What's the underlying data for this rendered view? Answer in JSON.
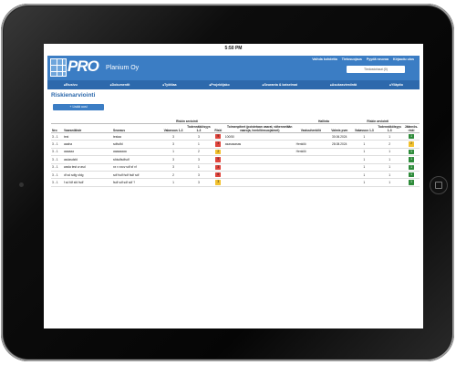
{
  "status_bar": {
    "time": "5:50 PM"
  },
  "header": {
    "logo": "PRO",
    "company": "Planium Oy",
    "links": [
      "Vaihda kohdetta",
      "Tietosuojaus",
      "Pyydä neuvoa",
      "Kirjaudu ulos"
    ],
    "search": "Tiedostohaut (0)"
  },
  "nav": [
    "Etusivu",
    "Dokumentit",
    "Työtilaa",
    "Projektijako",
    "Seuranta & katselmat",
    "Asukasviestintä",
    "Ylläpito"
  ],
  "page": {
    "title": "Riskienarviointi",
    "add_button": "+ Lisää uusi"
  },
  "table": {
    "group_headers": {
      "risk": "Riskin arviointi",
      "handling": "Hallinta",
      "residual": "Riskin arviointi"
    },
    "headers": [
      "Nro",
      "Vaaranlähde",
      "Seuraus",
      "Vakavuus 1-3",
      "Todennäköisyys 1-3",
      "Riski",
      "Toimenpiteet (poistetaan vaarat, vähennetään vaaroja, henkilönsuojaimet)",
      "Vastuuhenkilö",
      "Valmis pvm",
      "Vakavuus 1-3",
      "Todennäköisyys 1-3",
      "Jäännös-riski"
    ],
    "rows": [
      {
        "cells": [
          "3 - 1",
          "test",
          "testaa",
          "3",
          "3",
          "9",
          "100/50",
          "",
          "30.06.2024",
          "1",
          "1",
          "1"
        ],
        "risk_color": "#e0443c",
        "residual_color": "#2e8b3a"
      },
      {
        "cells": [
          "3 - 1",
          "aaaha",
          "sdfsdfd",
          "3",
          "1",
          "3",
          "asasasasas",
          "Henkilö",
          "28.08.2024",
          "1",
          "2",
          "2"
        ],
        "risk_color": "#e0443c",
        "residual_color": "#f2c12e"
      },
      {
        "cells": [
          "3 - 1",
          "aaaaaa",
          "aaaaaaaa",
          "1",
          "2",
          "2",
          "",
          "Henkilö",
          "",
          "1",
          "1",
          "1"
        ],
        "risk_color": "#f2c12e",
        "residual_color": "#2e8b3a"
      },
      {
        "cells": [
          "3 - 1",
          "asdasdsfd",
          "sfdsdfsdfsdf",
          "3",
          "3",
          "9",
          "",
          "",
          "",
          "1",
          "1",
          "1"
        ],
        "risk_color": "#e0443c",
        "residual_color": "#2e8b3a"
      },
      {
        "cells": [
          "3 - 1",
          "wada test w asd",
          "xx v xxcv sdf sf xf",
          "3",
          "1",
          "3",
          "",
          "",
          "",
          "1",
          "1",
          "1"
        ],
        "risk_color": "#e0443c",
        "residual_color": "#2e8b3a"
      },
      {
        "cells": [
          "3 - 1",
          "df sd sdfg sfdg",
          "sdf fsdf fsdf fsdf sdf",
          "2",
          "3",
          "6",
          "",
          "",
          "",
          "1",
          "1",
          "1"
        ],
        "risk_color": "#e0443c",
        "residual_color": "#2e8b3a"
      },
      {
        "cells": [
          "3 - 1",
          "f sd fdf sfd fsdf",
          "fsdf sdf sdf sdf ?",
          "1",
          "3",
          "3",
          "",
          "",
          "",
          "1",
          "1",
          "1"
        ],
        "risk_color": "#f2c12e",
        "residual_color": "#2e8b3a"
      }
    ]
  }
}
